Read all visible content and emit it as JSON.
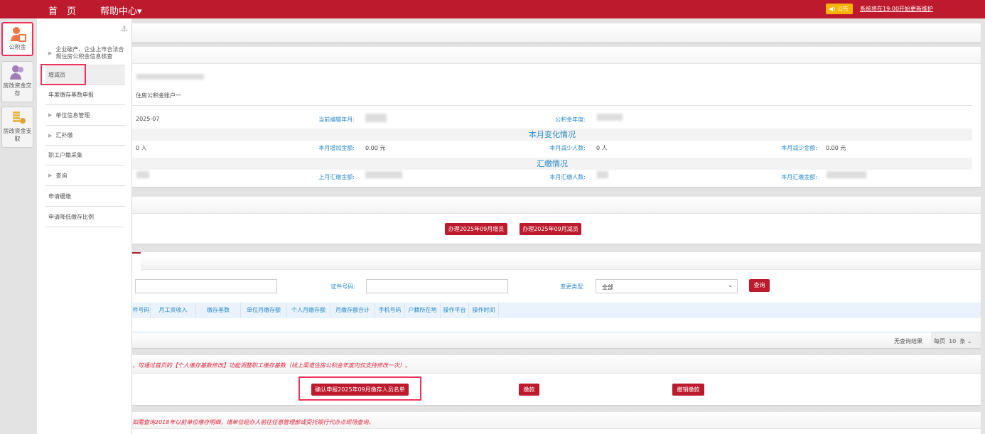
{
  "header": {
    "nav": [
      "首　页",
      "帮助中心▾"
    ],
    "notice_badge": "◀) 公告",
    "notice_text": "系统将在19:00开始更新维护"
  },
  "iconbar": [
    {
      "label": "公积金",
      "icon": "person-edit-icon"
    },
    {
      "label": "房改资金交存",
      "icon": "users-icon"
    },
    {
      "label": "房改资金支取",
      "icon": "coins-icon"
    }
  ],
  "menu": {
    "anchor_icon": "anchor-icon",
    "items": [
      {
        "label": "企业破产、企业上市合法合规住房公积金信息核查",
        "expandable": true
      },
      {
        "label": "增减员",
        "expandable": false,
        "active": true
      },
      {
        "label": "年度缴存基数申报",
        "expandable": false
      },
      {
        "label": "单位信息管理",
        "expandable": true
      },
      {
        "label": "汇补缴",
        "expandable": true
      },
      {
        "label": "职工户籍采集",
        "expandable": false
      },
      {
        "label": "查询",
        "expandable": true
      },
      {
        "label": "申请缓缴",
        "expandable": false
      },
      {
        "label": "申请降低缴存比例",
        "expandable": false
      }
    ]
  },
  "account": {
    "name": "住房公积金账户一",
    "month_value": "2025-07",
    "current_edit_label": "当前编辑年月:",
    "year_label": "公积金年度:",
    "change_title": "本月变化情况",
    "add_count": "0 人",
    "add_amount_label": "本月增加金额:",
    "add_amount": "0.00 元",
    "reduce_count_label": "本月减少人数:",
    "reduce_count": "0 人",
    "reduce_amount_label": "本月减少金额:",
    "reduce_amount": "0.00 元",
    "pay_title": "汇缴情况",
    "last_pay_label": "上月汇缴金额:",
    "pay_count_label": "本月汇缴人数:",
    "pay_amount_label": "本月汇缴金额:"
  },
  "actions": {
    "add_btn": "办理2025年09月增员",
    "reduce_btn": "办理2025年09月减员"
  },
  "search": {
    "id_label": "证件号码:",
    "type_label": "变更类型:",
    "type_value": "全部",
    "query_btn": "查询",
    "columns": [
      "件号码",
      "月工资收入",
      "缴存基数",
      "单位月缴存额",
      "个人月缴存额",
      "月缴存额合计",
      "手机号码",
      "户籍所在地",
      "操作平台",
      "操作时间"
    ],
    "no_result": "无查询结果",
    "page_size": "每页  10  条"
  },
  "payment": {
    "note": "，可通过首页的【个人缴存基数修改】功能调整职工缴存基数（线上渠道住房公积金年度内仅支持修改一次）。",
    "confirm_btn": "确认申报2025年09月缴存人员名单",
    "pay_btn": "缴款",
    "cancel_btn": "撤销缴款"
  },
  "bottom_note": "如需查询2018年以前单位缴存明细，请单位经办人前往任意管理部或受托银行代办点现场查询。",
  "colors": {
    "brand": "#bd1a2d",
    "label": "#2a8bc7",
    "notice": "#f6b400"
  }
}
